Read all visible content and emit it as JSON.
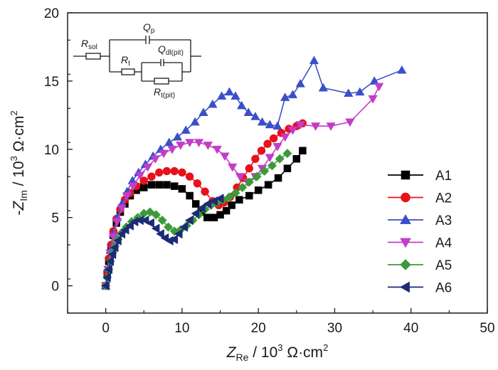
{
  "chart_data": {
    "type": "scatter",
    "title": "",
    "xlabel": {
      "main": "Z",
      "sub": "Re",
      "rest": " / 10",
      "sup": "3",
      "unit": " Ω·cm",
      "unit_sup": "2"
    },
    "ylabel": {
      "prefix": "-",
      "main": "Z",
      "sub": "Im",
      "rest": " / 10",
      "sup": "3",
      "unit": " Ω·cm",
      "unit_sup": "2"
    },
    "xlim": [
      -5,
      50
    ],
    "ylim": [
      -2,
      20
    ],
    "x_ticks": [
      0,
      10,
      20,
      30,
      40,
      50
    ],
    "y_ticks": [
      0,
      5,
      10,
      15,
      20
    ],
    "grid": false,
    "legend_position": "right",
    "series": [
      {
        "name": "A1",
        "color": "#000000",
        "marker": "square",
        "x": [
          0,
          0.2,
          0.4,
          0.7,
          1.0,
          1.4,
          1.9,
          2.5,
          3.2,
          4.0,
          5.0,
          6.0,
          7.0,
          8.0,
          9.0,
          10.0,
          11.0,
          11.8,
          12.5,
          13.3,
          14.2,
          15.0,
          15.8,
          16.5,
          17.5,
          18.8,
          20.0,
          21.3,
          22.6,
          23.8,
          25.0,
          25.8
        ],
        "y": [
          0,
          0.9,
          1.8,
          2.8,
          3.7,
          4.6,
          5.4,
          6.0,
          6.6,
          7.0,
          7.2,
          7.4,
          7.4,
          7.4,
          7.3,
          7.1,
          6.6,
          6.0,
          5.4,
          5.0,
          5.0,
          5.2,
          5.5,
          5.9,
          6.3,
          6.6,
          7.0,
          7.4,
          7.9,
          8.6,
          9.3,
          9.9
        ]
      },
      {
        "name": "A2",
        "color": "#e8111b",
        "marker": "circle",
        "x": [
          0,
          0.2,
          0.4,
          0.7,
          1.0,
          1.4,
          1.9,
          2.5,
          3.2,
          4.0,
          5.0,
          6.0,
          7.0,
          8.0,
          9.0,
          10.0,
          11.0,
          12.0,
          13.0,
          14.0,
          14.8,
          15.5,
          16.3,
          17.2,
          18.0,
          18.8,
          19.6,
          20.4,
          21.2,
          22.0,
          23.0,
          24.0,
          25.0,
          25.8
        ],
        "y": [
          0,
          1.0,
          2.0,
          3.0,
          4.0,
          4.9,
          5.6,
          6.3,
          6.8,
          7.3,
          7.7,
          8.0,
          8.3,
          8.4,
          8.4,
          8.3,
          8.0,
          7.5,
          6.9,
          6.2,
          5.9,
          6.1,
          6.5,
          7.2,
          7.9,
          8.6,
          9.3,
          9.9,
          10.4,
          10.8,
          11.2,
          11.5,
          11.7,
          11.9
        ]
      },
      {
        "name": "A3",
        "color": "#3a4fc9",
        "marker": "triangle-up",
        "x": [
          0,
          0.3,
          0.6,
          1.0,
          1.5,
          2.1,
          2.8,
          3.5,
          4.3,
          5.2,
          6.2,
          7.2,
          8.3,
          9.4,
          10.5,
          11.7,
          12.8,
          14.0,
          15.2,
          16.2,
          17.0,
          17.8,
          18.7,
          19.6,
          20.5,
          21.5,
          22.5,
          23.5,
          24.5,
          25.5,
          27.3,
          28.5,
          31.8,
          33.3,
          35.2,
          38.8
        ],
        "y": [
          0,
          1.3,
          2.6,
          3.8,
          5.0,
          6.0,
          6.9,
          7.7,
          8.3,
          8.9,
          9.5,
          10.0,
          10.5,
          10.9,
          11.4,
          12.0,
          12.7,
          13.3,
          13.9,
          14.2,
          13.9,
          13.2,
          12.7,
          12.4,
          12.0,
          11.8,
          11.7,
          13.8,
          14.0,
          14.8,
          16.5,
          14.5,
          14.1,
          14.2,
          15.0,
          15.8
        ]
      },
      {
        "name": "A4",
        "color": "#c23dc8",
        "marker": "triangle-down",
        "x": [
          0,
          0.3,
          0.6,
          1.0,
          1.5,
          2.1,
          2.8,
          3.6,
          4.5,
          5.5,
          6.5,
          7.6,
          8.7,
          9.8,
          11.0,
          12.2,
          13.4,
          14.6,
          15.6,
          16.6,
          17.6,
          18.6,
          19.6,
          20.5,
          21.5,
          22.5,
          23.5,
          24.5,
          25.5,
          27.5,
          29.5,
          32.0,
          35.0,
          35.8
        ],
        "y": [
          0,
          1.2,
          2.4,
          3.6,
          4.7,
          5.7,
          6.6,
          7.3,
          8.1,
          8.7,
          9.3,
          9.7,
          10.0,
          10.3,
          10.5,
          10.5,
          10.3,
          10.0,
          9.5,
          8.7,
          8.0,
          7.6,
          8.0,
          8.6,
          9.4,
          10.2,
          10.9,
          11.4,
          11.8,
          11.7,
          11.7,
          12.0,
          13.7,
          14.6
        ]
      },
      {
        "name": "A5",
        "color": "#3c9a3a",
        "marker": "diamond",
        "x": [
          0,
          0.2,
          0.4,
          0.6,
          0.9,
          1.2,
          1.6,
          2.1,
          2.7,
          3.4,
          4.2,
          5.0,
          5.8,
          6.6,
          7.4,
          8.2,
          9.0,
          9.8,
          10.6,
          11.4,
          12.2,
          13.0,
          13.8,
          14.6,
          15.4,
          16.2,
          17.0,
          17.9,
          18.8,
          19.8,
          20.8,
          21.8,
          22.8,
          23.8
        ],
        "y": [
          0,
          0.6,
          1.2,
          1.8,
          2.4,
          2.9,
          3.4,
          3.9,
          4.3,
          4.7,
          5.0,
          5.3,
          5.4,
          5.2,
          4.8,
          4.3,
          4.0,
          4.1,
          4.4,
          4.8,
          5.2,
          5.6,
          5.9,
          6.1,
          6.3,
          6.5,
          6.8,
          7.2,
          7.6,
          8.0,
          8.4,
          8.8,
          9.3,
          9.7
        ]
      },
      {
        "name": "A6",
        "color": "#1c2a78",
        "marker": "triangle-left",
        "x": [
          0,
          0.2,
          0.4,
          0.6,
          0.9,
          1.2,
          1.6,
          2.1,
          2.6,
          3.2,
          3.8,
          4.5,
          5.2,
          5.9,
          6.6,
          7.2,
          7.8,
          8.4,
          9.0,
          9.6,
          10.3,
          11.0,
          11.8,
          12.6,
          13.4,
          14.2,
          15.0
        ],
        "y": [
          0,
          0.6,
          1.2,
          1.8,
          2.3,
          2.8,
          3.3,
          3.8,
          4.1,
          4.4,
          4.7,
          4.8,
          4.8,
          4.6,
          4.2,
          3.8,
          3.5,
          3.3,
          3.4,
          3.8,
          4.3,
          4.8,
          5.3,
          5.7,
          6.0,
          6.2,
          6.4
        ]
      }
    ]
  },
  "circuit": {
    "r_sol": {
      "main": "R",
      "sub": "sol"
    },
    "q_p": {
      "main": "Q",
      "sub": "p"
    },
    "r_t": {
      "main": "R",
      "sub": "t"
    },
    "q_dl": {
      "main": "Q",
      "sub": "dl(pit)"
    },
    "r_t_pit": {
      "main": "R",
      "sub": "t(pit)"
    }
  }
}
